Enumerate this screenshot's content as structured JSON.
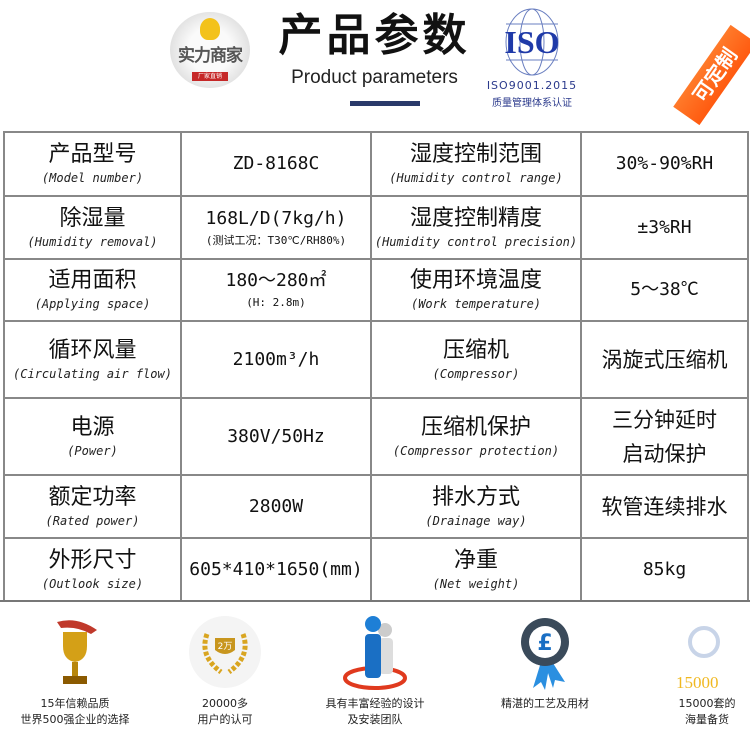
{
  "header": {
    "badge_text": "实力商家",
    "badge_sub": "厂家直销",
    "title": "产品参数",
    "subtitle": "Product parameters",
    "iso_logo": "ISO",
    "iso_cert": "ISO9001.2015",
    "iso_desc": "质量管理体系认证",
    "ribbon": "可定制",
    "ribbon_color": "#ff6a1a",
    "accent_bar_color": "#2a3a6a"
  },
  "table": {
    "rows": [
      {
        "l1_zh": "产品型号",
        "l1_en": "(Model number)",
        "v1": "ZD-8168C",
        "v1_sub": "",
        "l2_zh": "湿度控制范围",
        "l2_en": "(Humidity control range)",
        "v2": "30%-90%RH",
        "v2_zh": false
      },
      {
        "l1_zh": "除湿量",
        "l1_en": "(Humidity removal)",
        "v1": "168L/D(7kg/h)",
        "v1_sub": "(测试工况：T30℃/RH80%)",
        "l2_zh": "湿度控制精度",
        "l2_en": "(Humidity control precision)",
        "v2": "±3%RH",
        "v2_zh": false
      },
      {
        "l1_zh": "适用面积",
        "l1_en": "(Applying space)",
        "v1": "180～280㎡",
        "v1_sub": "(H: 2.8m)",
        "l2_zh": "使用环境温度",
        "l2_en": "(Work temperature)",
        "v2": "5～38℃",
        "v2_zh": false
      },
      {
        "l1_zh": "循环风量",
        "l1_en": "(Circulating air flow)",
        "v1": "2100m³/h",
        "v1_sub": "",
        "l2_zh": "压缩机",
        "l2_en": "(Compressor)",
        "v2": "涡旋式压缩机",
        "v2_zh": true
      },
      {
        "l1_zh": "电源",
        "l1_en": "(Power)",
        "v1": "380V/50Hz",
        "v1_sub": "",
        "l2_zh": "压缩机保护",
        "l2_en": "(Compressor protection)",
        "v2": "三分钟延时启动保护",
        "v2_zh": true
      },
      {
        "l1_zh": "额定功率",
        "l1_en": "(Rated power)",
        "v1": "2800W",
        "v1_sub": "",
        "l2_zh": "排水方式",
        "l2_en": "(Drainage way)",
        "v2": "软管连续排水",
        "v2_zh": true
      },
      {
        "l1_zh": "外形尺寸",
        "l1_en": "(Outlook size)",
        "v1": "605*410*1650(mm)",
        "v1_sub": "",
        "l2_zh": "净重",
        "l2_en": "(Net weight)",
        "v2": "85kg",
        "v2_zh": false
      }
    ]
  },
  "features": [
    {
      "icon": "trophy-icon",
      "line1": "15年信赖品质",
      "line2": "世界500强企业的选择"
    },
    {
      "icon": "laurel-badge-icon",
      "badge": "2万",
      "line1": "20000多",
      "line2": "用户的认可"
    },
    {
      "icon": "team-icon",
      "line1": "具有丰富经验的设计",
      "line2": "及安装团队"
    },
    {
      "icon": "quality-medal-icon",
      "line1": "精湛的工艺及用材",
      "line2": ""
    },
    {
      "icon": "magnifier-icon",
      "badge": "15000",
      "line1": "15000套的",
      "line2": "海量备货"
    }
  ]
}
